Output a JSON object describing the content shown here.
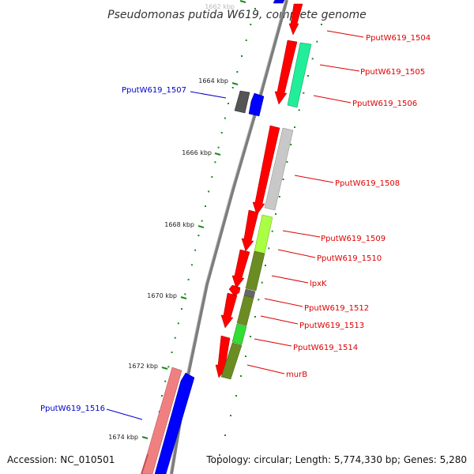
{
  "title": "Pseudomonas putida W619, complete genome",
  "accession": "Accession: NC_010501",
  "summary": "Topology: circular; Length: 5,774,330 bp; Genes: 5,280",
  "colors": {
    "backbone": "#8c8c8c",
    "tick": "#1a8a1a",
    "label_red": "#dd0000",
    "label_blue": "#0000cc"
  },
  "ruler_labels": [
    "1662 kbp",
    "1664 kbp",
    "1666 kbp",
    "1668 kbp",
    "1670 kbp",
    "1672 kbp",
    "1674 kbp"
  ],
  "gene_labels": [
    {
      "text": "PputW619_1504",
      "color": "red"
    },
    {
      "text": "PputW619_1505",
      "color": "red"
    },
    {
      "text": "PputW619_1506",
      "color": "red"
    },
    {
      "text": "PputW619_1507",
      "color": "blue"
    },
    {
      "text": "PputW619_1508",
      "color": "red"
    },
    {
      "text": "PputW619_1509",
      "color": "red"
    },
    {
      "text": "PputW619_1510",
      "color": "red"
    },
    {
      "text": "lpxK",
      "color": "red"
    },
    {
      "text": "PputW619_1512",
      "color": "red"
    },
    {
      "text": "PputW619_1513",
      "color": "red"
    },
    {
      "text": "PputW619_1514",
      "color": "red"
    },
    {
      "text": "murB",
      "color": "red"
    },
    {
      "text": "PputW619_1516",
      "color": "blue"
    }
  ]
}
